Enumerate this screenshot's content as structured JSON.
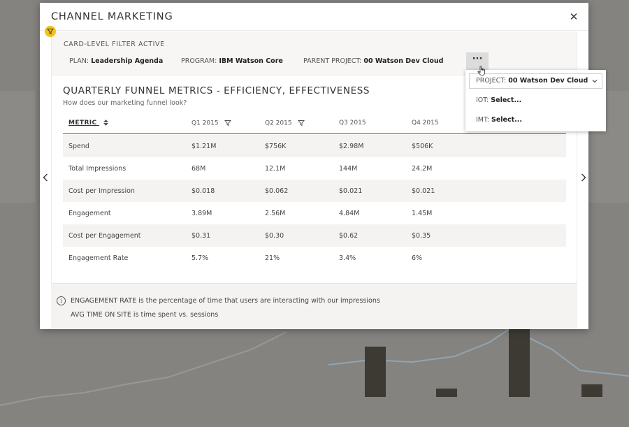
{
  "modal": {
    "title": "CHANNEL MARKETING",
    "close_icon": "close-icon"
  },
  "filters": {
    "active_label": "CARD-LEVEL FILTER ACTIVE",
    "plan": {
      "label": "PLAN:",
      "value": "Leadership Agenda"
    },
    "program": {
      "label": "PROGRAM:",
      "value": "IBM Watson Core"
    },
    "parent_project": {
      "label": "PARENT PROJECT:",
      "value": "00 Watson Dev Cloud"
    },
    "more_label": "···"
  },
  "popover": {
    "project": {
      "label": "PROJECT:",
      "value": "00 Watson Dev Cloud"
    },
    "iot": {
      "label": "IOT:",
      "value": "Select..."
    },
    "imt": {
      "label": "IMT:",
      "value": "Select..."
    }
  },
  "card": {
    "title": "QUARTERLY FUNNEL METRICS - EFFICIENCY, EFFECTIVENESS",
    "subtitle": "How does our marketing funnel look?"
  },
  "table": {
    "columns": [
      "METRIC",
      "Q1 2015",
      "Q2 2015",
      "Q3 2015",
      "Q4 2015"
    ],
    "rows": [
      {
        "metric": "Spend",
        "q1": "$1.21M",
        "q2": "$756K",
        "q3": "$2.98M",
        "q4": "$506K"
      },
      {
        "metric": "Total Impressions",
        "q1": "68M",
        "q2": "12.1M",
        "q3": "144M",
        "q4": "24.2M"
      },
      {
        "metric": "Cost per Impression",
        "q1": "$0.018",
        "q2": "$0.062",
        "q3": "$0.021",
        "q4": "$0.021"
      },
      {
        "metric": "Engagement",
        "q1": "3.89M",
        "q2": "2.56M",
        "q3": "4.84M",
        "q4": "1.45M"
      },
      {
        "metric": "Cost per Engagement",
        "q1": "$0.31",
        "q2": "$0.30",
        "q3": "$0.62",
        "q4": "$0.35"
      },
      {
        "metric": "Engagement Rate",
        "q1": "5.7%",
        "q2": "21%",
        "q3": "3.4%",
        "q4": "6%"
      }
    ]
  },
  "footer": {
    "info_icon_glyph": "i",
    "line1": "ENGAGEMENT RATE is the percentage of time that users are interacting with our impressions",
    "line2": "AVG TIME ON SITE is time spent vs. sessions"
  },
  "colors": {
    "filter_badge": "#f2c31a",
    "overlay": "#858380",
    "row_alt": "#f4f3f1"
  }
}
